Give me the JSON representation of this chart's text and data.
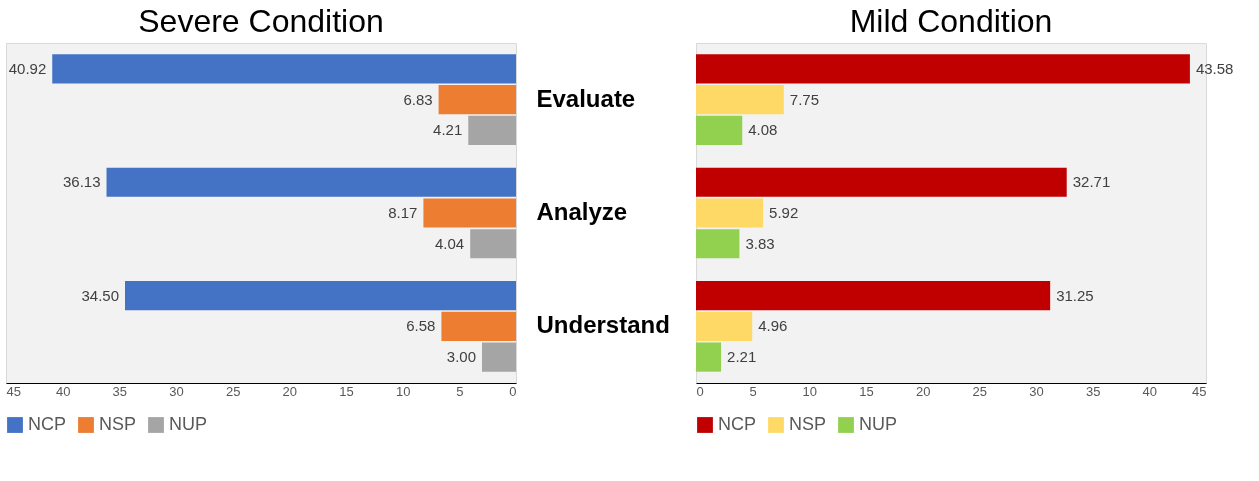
{
  "chart_data": [
    {
      "type": "bar",
      "orientation": "horizontal",
      "title": "Severe Condition",
      "categories": [
        "Evaluate",
        "Analyze",
        "Understand"
      ],
      "xlim": [
        45,
        0
      ],
      "xticks": [
        45,
        40,
        35,
        30,
        25,
        20,
        15,
        10,
        5,
        0
      ],
      "grid": false,
      "legend": "bottom",
      "series": [
        {
          "name": "NCP",
          "color": "#4472c4",
          "values": [
            40.92,
            36.13,
            34.5
          ],
          "value_labels": [
            "40.92",
            "36.13",
            "34.50"
          ]
        },
        {
          "name": "NSP",
          "color": "#ed7d31",
          "values": [
            6.83,
            8.17,
            6.58
          ],
          "value_labels": [
            "6.83",
            "8.17",
            "6.58"
          ]
        },
        {
          "name": "NUP",
          "color": "#a5a5a5",
          "values": [
            4.21,
            4.04,
            3.0
          ],
          "value_labels": [
            "4.21",
            "4.04",
            "3.00"
          ]
        }
      ]
    },
    {
      "type": "bar",
      "orientation": "horizontal",
      "title": "Mild Condition",
      "categories": [
        null,
        null,
        null
      ],
      "tick_labels": "x",
      "xlim": [
        0,
        45
      ],
      "xticks": [
        0,
        5,
        10,
        15,
        20,
        25,
        30,
        35,
        40,
        45
      ],
      "grid": false,
      "legend": "bottom",
      "series": [
        {
          "name": "NCP",
          "color": "#c00000",
          "values": [
            43.58,
            32.71,
            31.25
          ],
          "value_labels": [
            "43.58",
            "32.71",
            "31.25"
          ]
        },
        {
          "name": "NSP",
          "color": "#ffd966",
          "values": [
            7.75,
            5.92,
            4.96
          ],
          "value_labels": [
            "7.75",
            "5.92",
            "4.96"
          ]
        },
        {
          "name": "NUP",
          "color": "#92d050",
          "values": [
            4.08,
            3.83,
            2.21
          ],
          "value_labels": [
            "4.08",
            "3.83",
            "2.21"
          ]
        }
      ]
    }
  ]
}
